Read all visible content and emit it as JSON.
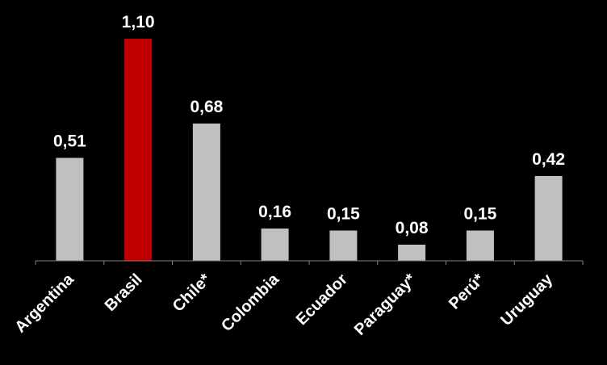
{
  "chart_data": {
    "type": "bar",
    "title": "",
    "xlabel": "",
    "ylabel": "",
    "categories": [
      "Argentina",
      "Brasil",
      "Chile*",
      "Colombia",
      "Ecuador",
      "Paraguay*",
      "Perú*",
      "Uruguay"
    ],
    "values": [
      0.51,
      1.1,
      0.68,
      0.16,
      0.15,
      0.08,
      0.15,
      0.42
    ],
    "data_labels": [
      "0,51",
      "1,10",
      "0,68",
      "0,16",
      "0,15",
      "0,08",
      "0,15",
      "0,42"
    ],
    "ylim": [
      0,
      1.1
    ],
    "grid": false,
    "legend": "none",
    "colors": {
      "default_bar": "#c0c0c0",
      "highlight_bar": "#c00000",
      "axis": "#808080",
      "text": "#ffffff",
      "background": "#000000"
    },
    "highlight_index": 1
  }
}
